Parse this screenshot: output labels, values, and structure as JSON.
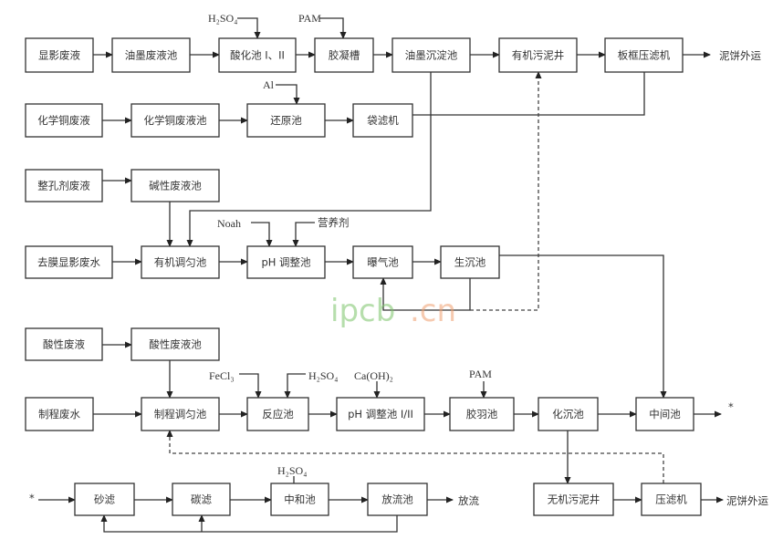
{
  "nodes": {
    "xianying_feiye": "显影废液",
    "youmo_feiyechi": "油墨废液池",
    "suanhuachi": "酸化池 I、II",
    "jiaoningcao": "胶凝槽",
    "youmo_chendianchi": "油墨沉淀池",
    "youji_wunijing": "有机污泥井",
    "bankuang_yalvji": "板框压滤机",
    "huaxuetong_feiye": "化学铜废液",
    "huaxuetong_feiyechi": "化学铜废液池",
    "huanyuanchi": "还原池",
    "dailvji": "袋滤机",
    "zhengkongji_feiye": "整孔剂废液",
    "jianxing_feiyechi": "碱性废液池",
    "qumo_xianying_feishui": "去膜显影废水",
    "youji_tiaoyunchi": "有机调匀池",
    "ph_tiaozhengchi": "pH 调整池",
    "puqichi": "曝气池",
    "shengchenchi": "生沉池",
    "suanxing_feiye": "酸性废液",
    "suanxing_feiyechi": "酸性废液池",
    "zhicheng_feishui": "制程废水",
    "zhicheng_tiaoyunchi": "制程调匀池",
    "fanyingchi": "反应池",
    "ph_tiaozhengchi_12": "pH 调整池 I/II",
    "jiaoyuchi": "胶羽池",
    "huachenchi": "化沉池",
    "zhongjianchi": "中间池",
    "shalv": "砂滤",
    "tanlv": "碳滤",
    "zhongheshi": "中和池",
    "fangliuchi": "放流池",
    "wuji_wunijing": "无机污泥井",
    "yalvji": "压滤机"
  },
  "outputs": {
    "nibing_waiyun_1": "泥饼外运",
    "nibing_waiyun_2": "泥饼外运",
    "fangliu": "放流",
    "connector_out": "*",
    "connector_in": "*"
  },
  "reagents": {
    "h2so4_1": "H₂SO₄",
    "pam_1": "PAM",
    "al": "Al",
    "noah": "Noah",
    "yingyangji": "营养剂",
    "fecl3": "FeCl₃",
    "h2so4_2": "H₂SO₄",
    "caoh2": "Ca(OH)₂",
    "pam_2": "PAM",
    "h2so4_3": "H₂SO₄"
  },
  "watermark": "ipcb.cn",
  "colors": {
    "line": "#333333",
    "watermark_green": "#7cc46a",
    "watermark_orange": "#f0a070"
  }
}
